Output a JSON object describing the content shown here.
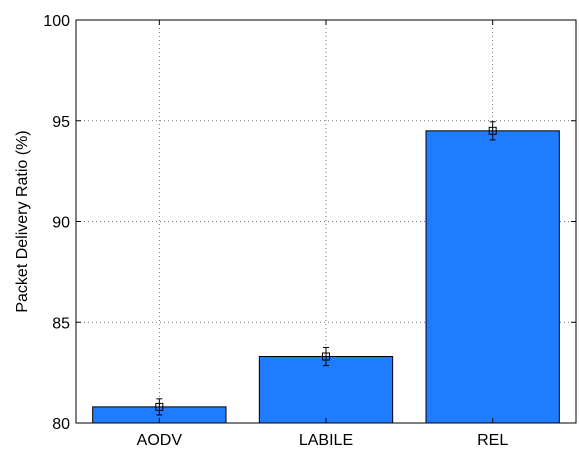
{
  "chart_data": {
    "type": "bar",
    "categories": [
      "AODV",
      "LABILE",
      "REL"
    ],
    "series": [
      {
        "values": [
          80.8,
          83.3,
          94.5
        ],
        "error": [
          0.4,
          0.45,
          0.45
        ],
        "color": "#1f7cff"
      }
    ],
    "title": "",
    "xlabel": "",
    "ylabel": "Packet Delivery Ratio (%)",
    "ylim": [
      80,
      100
    ],
    "yticks": [
      80,
      85,
      90,
      95,
      100
    ],
    "grid": true,
    "legend": "none"
  }
}
